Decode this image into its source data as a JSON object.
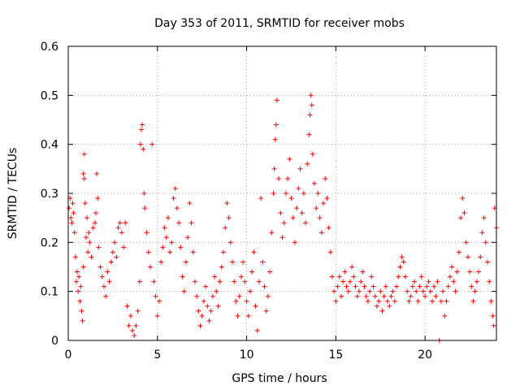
{
  "chart_data": {
    "type": "scatter",
    "title": "Day 353 of 2011, SRMTID for receiver mobs",
    "xlabel": "GPS time / hours",
    "ylabel": "SRMTID / TECUs",
    "xlim": [
      0,
      24
    ],
    "ylim": [
      0,
      0.6
    ],
    "xticks": [
      "0",
      "5",
      "10",
      "15",
      "20"
    ],
    "yticks": [
      "0",
      "0.1",
      "0.2",
      "0.3",
      "0.4",
      "0.5",
      "0.6"
    ],
    "grid": true,
    "marker": "plus",
    "color": "#ff0000",
    "series": [
      {
        "values": [
          [
            0.05,
            0.27
          ],
          [
            0.1,
            0.29
          ],
          [
            0.15,
            0.25
          ],
          [
            0.2,
            0.24
          ],
          [
            0.25,
            0.28
          ],
          [
            0.3,
            0.26
          ],
          [
            0.35,
            0.22
          ],
          [
            0.4,
            0.17
          ],
          [
            0.45,
            0.12
          ],
          [
            0.5,
            0.14
          ],
          [
            0.55,
            0.1
          ],
          [
            0.6,
            0.13
          ],
          [
            0.65,
            0.08
          ],
          [
            0.7,
            0.11
          ],
          [
            0.75,
            0.06
          ],
          [
            0.8,
            0.04
          ],
          [
            0.85,
            0.15
          ],
          [
            0.85,
            0.34
          ],
          [
            0.9,
            0.38
          ],
          [
            0.9,
            0.33
          ],
          [
            0.95,
            0.28
          ],
          [
            1.0,
            0.21
          ],
          [
            1.05,
            0.25
          ],
          [
            1.1,
            0.18
          ],
          [
            1.15,
            0.22
          ],
          [
            1.2,
            0.2
          ],
          [
            1.3,
            0.17
          ],
          [
            1.4,
            0.23
          ],
          [
            1.5,
            0.24
          ],
          [
            1.55,
            0.26
          ],
          [
            1.6,
            0.34
          ],
          [
            1.65,
            0.29
          ],
          [
            1.7,
            0.19
          ],
          [
            1.8,
            0.15
          ],
          [
            1.9,
            0.13
          ],
          [
            2.0,
            0.11
          ],
          [
            2.1,
            0.09
          ],
          [
            2.2,
            0.14
          ],
          [
            2.3,
            0.12
          ],
          [
            2.4,
            0.16
          ],
          [
            2.5,
            0.18
          ],
          [
            2.6,
            0.2
          ],
          [
            2.7,
            0.17
          ],
          [
            2.8,
            0.23
          ],
          [
            2.9,
            0.24
          ],
          [
            3.0,
            0.22
          ],
          [
            3.1,
            0.19
          ],
          [
            3.2,
            0.24
          ],
          [
            3.3,
            0.07
          ],
          [
            3.4,
            0.03
          ],
          [
            3.5,
            0.05
          ],
          [
            3.6,
            0.02
          ],
          [
            3.7,
            0.01
          ],
          [
            3.8,
            0.03
          ],
          [
            3.9,
            0.06
          ],
          [
            4.0,
            0.12
          ],
          [
            4.05,
            0.4
          ],
          [
            4.1,
            0.43
          ],
          [
            4.15,
            0.44
          ],
          [
            4.2,
            0.39
          ],
          [
            4.25,
            0.3
          ],
          [
            4.3,
            0.27
          ],
          [
            4.4,
            0.22
          ],
          [
            4.5,
            0.18
          ],
          [
            4.6,
            0.15
          ],
          [
            4.7,
            0.4
          ],
          [
            4.8,
            0.12
          ],
          [
            4.9,
            0.09
          ],
          [
            5.0,
            0.05
          ],
          [
            5.1,
            0.08
          ],
          [
            5.2,
            0.16
          ],
          [
            5.3,
            0.19
          ],
          [
            5.4,
            0.23
          ],
          [
            5.5,
            0.21
          ],
          [
            5.6,
            0.25
          ],
          [
            5.7,
            0.18
          ],
          [
            5.8,
            0.2
          ],
          [
            5.9,
            0.29
          ],
          [
            6.0,
            0.31
          ],
          [
            6.1,
            0.27
          ],
          [
            6.2,
            0.24
          ],
          [
            6.3,
            0.19
          ],
          [
            6.4,
            0.13
          ],
          [
            6.5,
            0.1
          ],
          [
            6.6,
            0.16
          ],
          [
            6.7,
            0.21
          ],
          [
            6.8,
            0.28
          ],
          [
            6.9,
            0.24
          ],
          [
            7.0,
            0.18
          ],
          [
            7.1,
            0.12
          ],
          [
            7.2,
            0.09
          ],
          [
            7.3,
            0.06
          ],
          [
            7.4,
            0.03
          ],
          [
            7.5,
            0.05
          ],
          [
            7.6,
            0.08
          ],
          [
            7.7,
            0.11
          ],
          [
            7.8,
            0.07
          ],
          [
            7.9,
            0.04
          ],
          [
            8.0,
            0.06
          ],
          [
            8.1,
            0.09
          ],
          [
            8.2,
            0.13
          ],
          [
            8.3,
            0.1
          ],
          [
            8.4,
            0.07
          ],
          [
            8.5,
            0.12
          ],
          [
            8.6,
            0.15
          ],
          [
            8.7,
            0.18
          ],
          [
            8.8,
            0.23
          ],
          [
            8.9,
            0.28
          ],
          [
            9.0,
            0.25
          ],
          [
            9.1,
            0.2
          ],
          [
            9.2,
            0.16
          ],
          [
            9.3,
            0.12
          ],
          [
            9.4,
            0.08
          ],
          [
            9.5,
            0.05
          ],
          [
            9.6,
            0.09
          ],
          [
            9.7,
            0.13
          ],
          [
            9.8,
            0.16
          ],
          [
            9.9,
            0.12
          ],
          [
            10.0,
            0.08
          ],
          [
            10.1,
            0.05
          ],
          [
            10.2,
            0.1
          ],
          [
            10.3,
            0.14
          ],
          [
            10.4,
            0.18
          ],
          [
            10.5,
            0.07
          ],
          [
            10.6,
            0.02
          ],
          [
            10.7,
            0.12
          ],
          [
            10.8,
            0.29
          ],
          [
            10.9,
            0.16
          ],
          [
            11.0,
            0.11
          ],
          [
            11.1,
            0.06
          ],
          [
            11.2,
            0.09
          ],
          [
            11.3,
            0.14
          ],
          [
            11.4,
            0.22
          ],
          [
            11.5,
            0.3
          ],
          [
            11.55,
            0.35
          ],
          [
            11.6,
            0.41
          ],
          [
            11.65,
            0.44
          ],
          [
            11.7,
            0.49
          ],
          [
            11.8,
            0.33
          ],
          [
            11.9,
            0.26
          ],
          [
            12.0,
            0.21
          ],
          [
            12.1,
            0.24
          ],
          [
            12.2,
            0.3
          ],
          [
            12.3,
            0.33
          ],
          [
            12.4,
            0.37
          ],
          [
            12.5,
            0.29
          ],
          [
            12.6,
            0.25
          ],
          [
            12.7,
            0.2
          ],
          [
            12.8,
            0.27
          ],
          [
            12.9,
            0.31
          ],
          [
            13.0,
            0.35
          ],
          [
            13.1,
            0.26
          ],
          [
            13.2,
            0.3
          ],
          [
            13.3,
            0.24
          ],
          [
            13.4,
            0.36
          ],
          [
            13.5,
            0.42
          ],
          [
            13.55,
            0.46
          ],
          [
            13.6,
            0.5
          ],
          [
            13.65,
            0.48
          ],
          [
            13.7,
            0.38
          ],
          [
            13.8,
            0.32
          ],
          [
            13.9,
            0.27
          ],
          [
            14.0,
            0.3
          ],
          [
            14.1,
            0.25
          ],
          [
            14.2,
            0.22
          ],
          [
            14.3,
            0.28
          ],
          [
            14.4,
            0.33
          ],
          [
            14.5,
            0.29
          ],
          [
            14.6,
            0.23
          ],
          [
            14.7,
            0.18
          ],
          [
            14.8,
            0.13
          ],
          [
            14.9,
            0.1
          ],
          [
            15.0,
            0.08
          ],
          [
            15.1,
            0.11
          ],
          [
            15.2,
            0.13
          ],
          [
            15.3,
            0.09
          ],
          [
            15.4,
            0.12
          ],
          [
            15.5,
            0.14
          ],
          [
            15.6,
            0.11
          ],
          [
            15.7,
            0.1
          ],
          [
            15.8,
            0.12
          ],
          [
            15.9,
            0.15
          ],
          [
            16.0,
            0.13
          ],
          [
            16.1,
            0.11
          ],
          [
            16.2,
            0.09
          ],
          [
            16.3,
            0.1
          ],
          [
            16.4,
            0.12
          ],
          [
            16.5,
            0.14
          ],
          [
            16.6,
            0.11
          ],
          [
            16.7,
            0.09
          ],
          [
            16.8,
            0.08
          ],
          [
            16.9,
            0.1
          ],
          [
            17.0,
            0.13
          ],
          [
            17.1,
            0.11
          ],
          [
            17.2,
            0.09
          ],
          [
            17.3,
            0.07
          ],
          [
            17.4,
            0.08
          ],
          [
            17.5,
            0.1
          ],
          [
            17.6,
            0.06
          ],
          [
            17.7,
            0.09
          ],
          [
            17.8,
            0.11
          ],
          [
            17.9,
            0.08
          ],
          [
            18.0,
            0.07
          ],
          [
            18.1,
            0.09
          ],
          [
            18.2,
            0.1
          ],
          [
            18.3,
            0.08
          ],
          [
            18.4,
            0.11
          ],
          [
            18.5,
            0.13
          ],
          [
            18.6,
            0.15
          ],
          [
            18.7,
            0.17
          ],
          [
            18.8,
            0.16
          ],
          [
            18.9,
            0.13
          ],
          [
            19.0,
            0.1
          ],
          [
            19.1,
            0.08
          ],
          [
            19.2,
            0.09
          ],
          [
            19.3,
            0.11
          ],
          [
            19.4,
            0.12
          ],
          [
            19.5,
            0.1
          ],
          [
            19.6,
            0.08
          ],
          [
            19.7,
            0.11
          ],
          [
            19.8,
            0.13
          ],
          [
            19.9,
            0.1
          ],
          [
            20.0,
            0.09
          ],
          [
            20.1,
            0.11
          ],
          [
            20.2,
            0.12
          ],
          [
            20.3,
            0.1
          ],
          [
            20.4,
            0.08
          ],
          [
            20.5,
            0.11
          ],
          [
            20.6,
            0.09
          ],
          [
            20.7,
            0.12
          ],
          [
            20.8,
            0.0
          ],
          [
            20.9,
            0.08
          ],
          [
            21.0,
            0.1
          ],
          [
            21.1,
            0.05
          ],
          [
            21.2,
            0.08
          ],
          [
            21.3,
            0.11
          ],
          [
            21.4,
            0.13
          ],
          [
            21.5,
            0.15
          ],
          [
            21.6,
            0.12
          ],
          [
            21.7,
            0.1
          ],
          [
            21.8,
            0.14
          ],
          [
            21.9,
            0.18
          ],
          [
            22.0,
            0.25
          ],
          [
            22.1,
            0.29
          ],
          [
            22.2,
            0.26
          ],
          [
            22.3,
            0.2
          ],
          [
            22.4,
            0.17
          ],
          [
            22.5,
            0.14
          ],
          [
            22.6,
            0.11
          ],
          [
            22.7,
            0.08
          ],
          [
            22.8,
            0.1
          ],
          [
            22.9,
            0.12
          ],
          [
            23.0,
            0.14
          ],
          [
            23.1,
            0.17
          ],
          [
            23.2,
            0.22
          ],
          [
            23.3,
            0.25
          ],
          [
            23.4,
            0.2
          ],
          [
            23.5,
            0.16
          ],
          [
            23.6,
            0.12
          ],
          [
            23.7,
            0.08
          ],
          [
            23.8,
            0.05
          ],
          [
            23.85,
            0.03
          ],
          [
            23.9,
            0.27
          ],
          [
            24.0,
            0.23
          ]
        ]
      }
    ]
  }
}
